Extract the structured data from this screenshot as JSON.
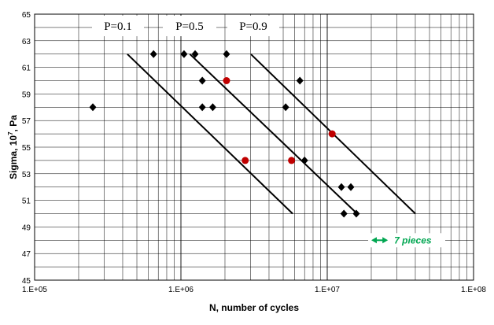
{
  "chart_data": {
    "type": "scatter",
    "title": "",
    "xlabel": "N, number of cycles",
    "ylabel": "Sigma, 10^7, Pa",
    "ylabel_base": "Sigma, 10",
    "ylabel_exp": "7",
    "ylabel_rest": ", Pa",
    "x_scale": "log",
    "xlim": [
      100000,
      100000000
    ],
    "ylim": [
      45,
      65
    ],
    "x_ticks": [
      100000,
      1000000,
      10000000,
      100000000
    ],
    "x_tick_labels": [
      "1.E+05",
      "1.E+06",
      "1.E+07",
      "1.E+08"
    ],
    "y_ticks": [
      45,
      47,
      49,
      51,
      53,
      55,
      57,
      59,
      61,
      63,
      65
    ],
    "grid": "on",
    "series": [
      {
        "marker": "diamond",
        "color": "#000000",
        "points": [
          [
            250000,
            58
          ],
          [
            650000,
            62
          ],
          [
            1050000,
            62
          ],
          [
            1250000,
            62
          ],
          [
            2050000,
            62
          ],
          [
            1400000,
            60
          ],
          [
            1400000,
            58
          ],
          [
            1650000,
            58
          ],
          [
            5200000,
            58
          ],
          [
            6500000,
            60
          ],
          [
            7000000,
            54
          ],
          [
            12500000,
            52
          ],
          [
            14500000,
            52
          ],
          [
            13000000,
            50
          ],
          [
            15800000,
            50
          ]
        ]
      },
      {
        "marker": "circle",
        "color": "#c00000",
        "points": [
          [
            2050000,
            60
          ],
          [
            2750000,
            54
          ],
          [
            5700000,
            54
          ],
          [
            10800000,
            56
          ]
        ]
      }
    ],
    "fit_lines": [
      {
        "label": "P=0.1",
        "points": [
          [
            430000,
            62
          ],
          [
            5800000,
            50
          ]
        ]
      },
      {
        "label": "P=0.5",
        "points": [
          [
            1150000,
            62
          ],
          [
            16000000,
            50
          ]
        ]
      },
      {
        "label": "P=0.9",
        "points": [
          [
            3000000,
            62
          ],
          [
            40000000,
            50
          ]
        ]
      }
    ],
    "annotation": {
      "text": "7 pieces",
      "color": "#00a651",
      "arrow_x": [
        20000000,
        26000000
      ],
      "y": 48
    }
  }
}
